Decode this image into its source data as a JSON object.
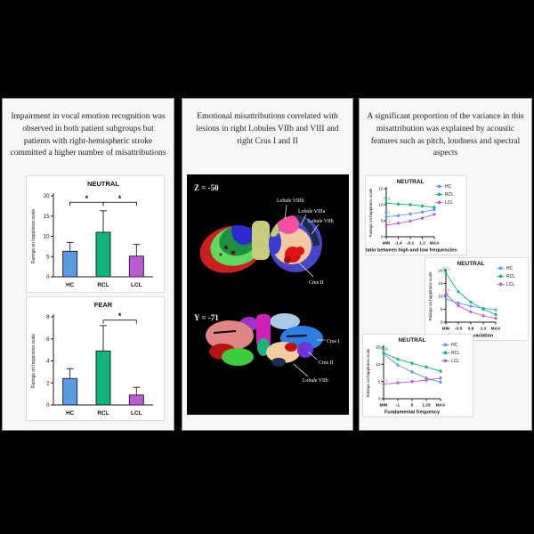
{
  "figure": {
    "panels": {
      "left": {
        "text": "Impairment in vocal emotion recognition was observed in both patient subgroups but patients with right-hemispheric stroke committed a higher number of misattributions"
      },
      "middle": {
        "text": "Emotional misattributions correlated with lesions in right Lobules VIIb and VIII and right Crus I and II",
        "slice_top": {
          "coord": "Z = -50",
          "labels": {
            "l1": "Lobule VIIIb",
            "l2": "Lobule VIIIa",
            "l3": "Lobule VIIb",
            "l4": "Crus II"
          }
        },
        "slice_bottom": {
          "coord": "Y = -71",
          "labels": {
            "b1": "Crus I",
            "b2": "Crus II",
            "b3": "Lobule VIIb"
          }
        }
      },
      "right": {
        "text": "A significant proportion of the variance in this misattribution was explained by acoustic features such as pitch, loudness and spectral aspects"
      }
    }
  },
  "colors": {
    "HC": "#5b9be4",
    "RCL": "#0fb47e",
    "LCL": "#bb5cd6"
  },
  "chart_data": [
    {
      "type": "bar",
      "title": "NEUTRAL",
      "ylabel": "Ratings on happiness scale",
      "categories": [
        "HC",
        "RCL",
        "LCL"
      ],
      "values": [
        6.3,
        11.0,
        5.1
      ],
      "errors": [
        2.2,
        5.3,
        2.9
      ],
      "ylim": [
        0,
        20
      ],
      "yticks": [
        0,
        5,
        10,
        15,
        20
      ],
      "significance": [
        {
          "from": 0,
          "to": 1,
          "label": "*",
          "y": 18.4
        },
        {
          "from": 1,
          "to": 2,
          "label": "*",
          "y": 18.4
        }
      ]
    },
    {
      "type": "bar",
      "title": "FEAR",
      "ylabel": "Ratings on happiness scale",
      "categories": [
        "HC",
        "RCL",
        "LCL"
      ],
      "values": [
        2.4,
        4.9,
        0.9
      ],
      "errors": [
        0.9,
        2.3,
        0.7
      ],
      "ylim": [
        0,
        8
      ],
      "yticks": [
        0,
        2,
        4,
        6,
        8
      ],
      "significance": [
        {
          "from": 1,
          "to": 2,
          "label": "*",
          "y": 7.7
        }
      ]
    },
    {
      "type": "line",
      "title": "NEUTRAL",
      "xlabel": "Ratio between high and low frequencies",
      "ylabel": "Ratings on happiness scale",
      "xticklabels": [
        "MIN",
        "-1.4",
        "-0.1",
        "1.2",
        "MAX"
      ],
      "ylim": [
        0,
        15
      ],
      "yticks": [
        0,
        5,
        10,
        15
      ],
      "point_error": 0.5,
      "legend": [
        "HC",
        "RCL",
        "LCL"
      ],
      "series": [
        {
          "name": "HC",
          "values": [
            6.2,
            6.6,
            7.1,
            7.7,
            8.5
          ]
        },
        {
          "name": "RCL",
          "values": [
            10.5,
            10.2,
            10.0,
            9.6,
            9.2
          ]
        },
        {
          "name": "LCL",
          "values": [
            3.6,
            4.2,
            4.9,
            5.8,
            7.0
          ]
        }
      ]
    },
    {
      "type": "line",
      "title": "NEUTRAL",
      "xlabel": "Loudness variation",
      "ylabel": "Ratings on happiness scale",
      "xticklabels": [
        "MIN",
        "-0.5",
        "0.8",
        "2.3",
        "MAX"
      ],
      "ylim": [
        0,
        20
      ],
      "yticks": [
        0,
        5,
        10,
        15,
        20
      ],
      "point_error": 0.6,
      "legend": [
        "HC",
        "RCL",
        "LCL"
      ],
      "series": [
        {
          "name": "HC",
          "values": [
            9.0,
            7.4,
            6.2,
            5.4,
            4.8
          ]
        },
        {
          "name": "RCL",
          "values": [
            19.0,
            11.8,
            7.8,
            5.0,
            3.0
          ]
        },
        {
          "name": "LCL",
          "values": [
            10.8,
            6.4,
            4.0,
            2.5,
            1.5
          ]
        }
      ]
    },
    {
      "type": "line",
      "title": "NEUTRAL",
      "xlabel": "Fundamental frequency",
      "ylabel": "Ratings on happiness scale",
      "xticklabels": [
        "MIN",
        "-1",
        "0",
        "1.15",
        "MAX"
      ],
      "ylim": [
        0,
        15
      ],
      "yticks": [
        0,
        5,
        10,
        15
      ],
      "point_error": 0.5,
      "legend": [
        "HC",
        "RCL",
        "LCL"
      ],
      "series": [
        {
          "name": "HC",
          "values": [
            13.0,
            9.8,
            7.8,
            6.0,
            4.8
          ]
        },
        {
          "name": "RCL",
          "values": [
            13.3,
            11.5,
            10.3,
            9.2,
            8.0
          ]
        },
        {
          "name": "LCL",
          "values": [
            4.2,
            4.6,
            5.0,
            5.4,
            6.0
          ]
        }
      ]
    }
  ]
}
